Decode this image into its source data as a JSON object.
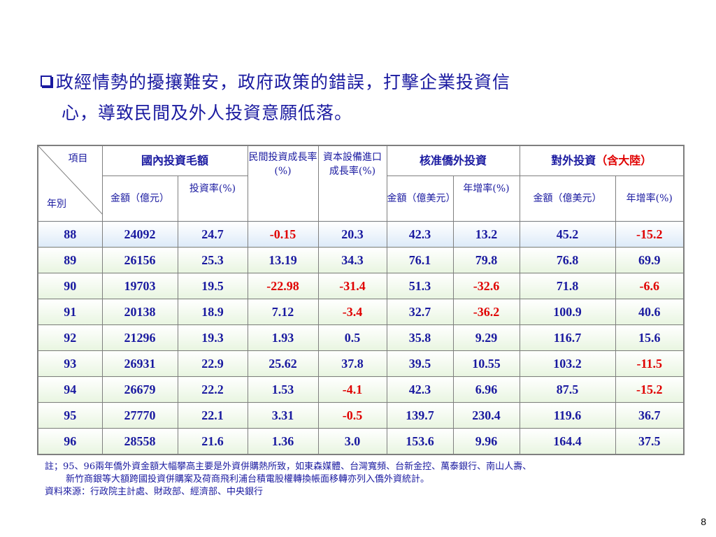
{
  "heading": {
    "line1": "政經情勢的擾攘難安，政府政策的錯誤，打擊企業投資信",
    "line2": "心，導致民間及外人投資意願低落。"
  },
  "table": {
    "corner_item": "項目",
    "corner_year": "年別",
    "group_domestic": "國內投資毛額",
    "private_growth": "民間投資成長率(%)",
    "equipment_growth": "資本設備進口成長率(%)",
    "group_fdi": "核准僑外投資",
    "group_outward": "對外投資",
    "group_outward_note": "（含大陸）",
    "sub_amount_twd": "金額（億元）",
    "sub_invest_rate": "投資率(%)",
    "sub_amount_usd_1": "金額（億美元）",
    "sub_growth_1": "年增率(%)",
    "sub_amount_usd_2": "金額（億美元）",
    "sub_growth_2": "年增率(%)",
    "rows": [
      [
        "88",
        "24092",
        "24.7",
        "-0.15",
        "20.3",
        "42.3",
        "13.2",
        "45.2",
        "-15.2"
      ],
      [
        "89",
        "26156",
        "25.3",
        "13.19",
        "34.3",
        "76.1",
        "79.8",
        "76.8",
        "69.9"
      ],
      [
        "90",
        "19703",
        "19.5",
        "-22.98",
        "-31.4",
        "51.3",
        "-32.6",
        "71.8",
        "-6.6"
      ],
      [
        "91",
        "20138",
        "18.9",
        "7.12",
        "-3.4",
        "32.7",
        "-36.2",
        "100.9",
        "40.6"
      ],
      [
        "92",
        "21296",
        "19.3",
        "1.93",
        "0.5",
        "35.8",
        "9.29",
        "116.7",
        "15.6"
      ],
      [
        "93",
        "26931",
        "22.9",
        "25.62",
        "37.8",
        "39.5",
        "10.55",
        "103.2",
        "-11.5"
      ],
      [
        "94",
        "26679",
        "22.2",
        "1.53",
        "-4.1",
        "42.3",
        "6.96",
        "87.5",
        "-15.2"
      ],
      [
        "95",
        "27770",
        "22.1",
        "3.31",
        "-0.5",
        "139.7",
        "230.4",
        "119.6",
        "36.7"
      ],
      [
        "96",
        "28558",
        "21.6",
        "1.36",
        "3.0",
        "153.6",
        "9.96",
        "164.4",
        "37.5"
      ]
    ]
  },
  "footnote": {
    "line1": "註；95、96兩年僑外資金額大幅攀高主要是外資併購熱所致，如東森媒體、台灣寬頻、台新金控、萬泰銀行、南山人壽、",
    "line2": "新竹商銀等大額跨國投資併購案及荷商飛利浦台積電股權轉換帳面移轉亦列入僑外資統計。",
    "source": "資料來源：行政院主計處、財政部、經濟部、中央銀行"
  },
  "page_number": "8",
  "colors": {
    "text": "#1a1aa0",
    "negative": "#e00000",
    "border": "#7f7f7f"
  }
}
